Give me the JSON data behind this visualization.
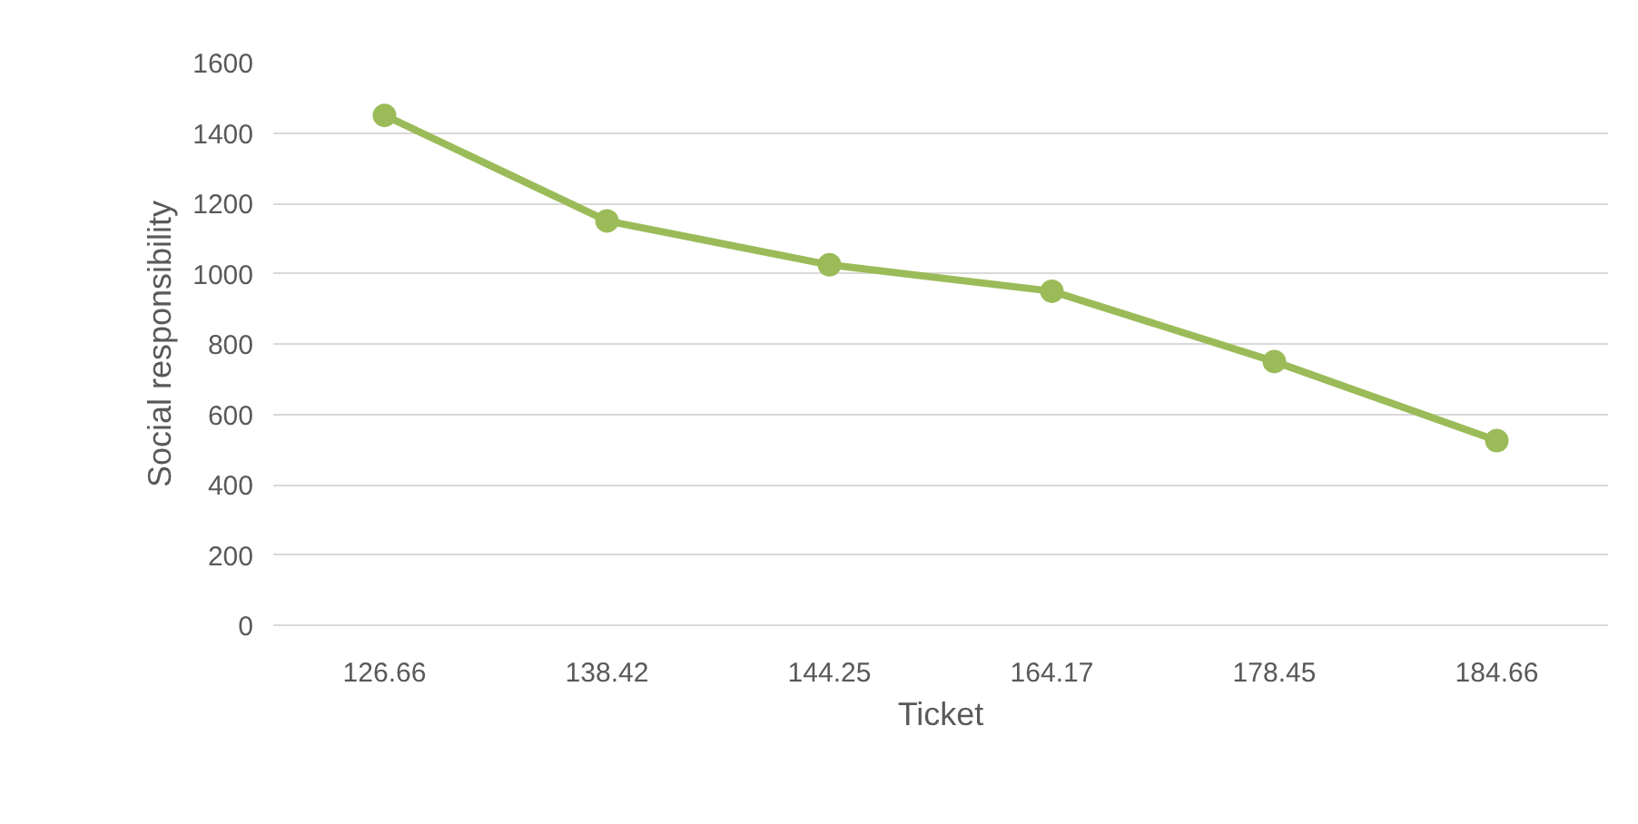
{
  "chart_data": {
    "type": "line",
    "xlabel": "Ticket",
    "ylabel": "Social responsibility",
    "categories": [
      "126.66",
      "138.42",
      "144.25",
      "164.17",
      "178.45",
      "184.66"
    ],
    "series": [
      {
        "color": "#9bbb59",
        "values": [
          1450,
          1150,
          1025,
          950,
          750,
          525
        ]
      }
    ],
    "ylim": [
      0,
      1600
    ],
    "yticks": [
      0,
      200,
      400,
      600,
      800,
      1000,
      1200,
      1400,
      1600
    ],
    "grid": "y",
    "marker": "circle",
    "line_style": "solid"
  }
}
